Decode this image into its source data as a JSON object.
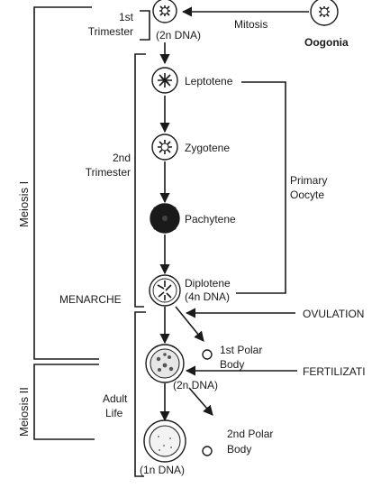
{
  "stages": {
    "oogonia": "Oogonia",
    "mitosis": "Mitosis",
    "first_trimester_1": "1st",
    "first_trimester_2": "Trimester",
    "dna_2n_top": "(2n DNA)",
    "leptotene": "Leptotene",
    "second_trimester_1": "2nd",
    "second_trimester_2": "Trimester",
    "zygotene": "Zygotene",
    "pachytene": "Pachytene",
    "primary_oocyte_1": "Primary",
    "primary_oocyte_2": "Oocyte",
    "diplotene": "Diplotene",
    "dna_4n": "(4n DNA)",
    "menarche": "MENARCHE",
    "ovulation": "OVULATION",
    "first_polar_1": "1st Polar",
    "first_polar_2": "Body",
    "dna_2n_mid": "(2n DNA)",
    "fertilization": "FERTILIZATI",
    "adult_1": "Adult",
    "adult_2": "Life",
    "second_polar_1": "2nd Polar",
    "second_polar_2": "Body",
    "dna_1n": "(1n DNA)",
    "meiosis_1": "Meiosis I",
    "meiosis_2": "Meiosis II"
  }
}
